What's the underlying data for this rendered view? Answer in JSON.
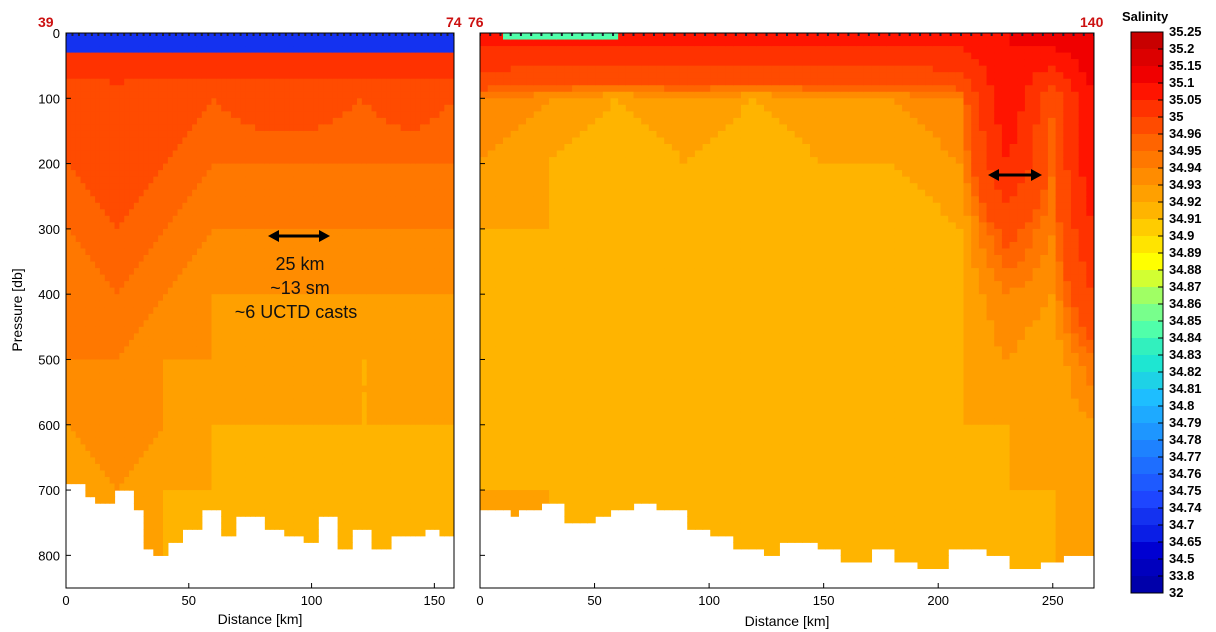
{
  "chart_data": [
    {
      "type": "heatmap",
      "title": "",
      "xlabel": "Distance [km]",
      "ylabel": "Pressure [db]",
      "xlim": [
        0,
        158
      ],
      "ylim": [
        850,
        0
      ],
      "x_ticks": [
        "0",
        "50",
        "100",
        "150"
      ],
      "y_ticks": [
        "0",
        "100",
        "200",
        "300",
        "400",
        "500",
        "600",
        "700",
        "800"
      ],
      "station_labels": {
        "left": "39",
        "right": "74"
      },
      "annotation": [
        "25 km",
        "~13 sm",
        "~6 UCTD casts"
      ],
      "arrow_x_km": [
        80,
        105
      ],
      "arrow_pressure_db": 310,
      "surface_layer": {
        "pressure_db": [
          0,
          30
        ],
        "salinity": 34.7
      },
      "bottom_depth_x_km": [
        0,
        8,
        12,
        20,
        28,
        32,
        36,
        42,
        48,
        56,
        63,
        70,
        80,
        88,
        96,
        103,
        110,
        116,
        124,
        132,
        140,
        146,
        152,
        158
      ],
      "bottom_depth_db": [
        690,
        710,
        720,
        700,
        730,
        790,
        800,
        780,
        760,
        730,
        770,
        735,
        755,
        765,
        780,
        735,
        790,
        760,
        790,
        770,
        770,
        755,
        770,
        770
      ],
      "salinity_field": {
        "x_km": [
          0,
          20,
          40,
          60,
          80,
          100,
          120,
          140,
          158
        ],
        "pressure_db": [
          40,
          100,
          200,
          300,
          400,
          500,
          600,
          700,
          800
        ],
        "values": [
          [
            35.03,
            35.03,
            35.03,
            35.03,
            35.03,
            35.03,
            35.03,
            35.03,
            35.03
          ],
          [
            34.97,
            34.98,
            34.97,
            34.96,
            34.97,
            34.97,
            34.96,
            34.97,
            34.96
          ],
          [
            34.96,
            34.97,
            34.96,
            34.95,
            34.95,
            34.95,
            34.95,
            34.95,
            34.95
          ],
          [
            34.95,
            34.96,
            34.95,
            34.94,
            34.94,
            34.94,
            34.94,
            34.94,
            34.94
          ],
          [
            34.94,
            34.95,
            34.94,
            34.93,
            34.93,
            34.93,
            34.93,
            34.93,
            34.93
          ],
          [
            34.94,
            34.94,
            34.93,
            34.93,
            34.92,
            34.93,
            34.92,
            34.92,
            34.93
          ],
          [
            34.93,
            34.94,
            34.93,
            34.92,
            34.92,
            34.92,
            34.92,
            34.92,
            34.92
          ],
          [
            34.92,
            34.93,
            34.92,
            34.92,
            34.91,
            34.92,
            34.91,
            34.91,
            34.92
          ],
          [
            34.92,
            34.92,
            34.92,
            34.91,
            34.91,
            34.91,
            34.91,
            34.91,
            34.91
          ]
        ]
      }
    },
    {
      "type": "heatmap",
      "title": "",
      "xlabel": "Distance [km]",
      "ylabel": "",
      "xlim": [
        0,
        268
      ],
      "ylim": [
        850,
        0
      ],
      "x_ticks": [
        "0",
        "50",
        "100",
        "150",
        "200",
        "250"
      ],
      "y_ticks": [],
      "station_labels": {
        "left": "76",
        "right": "140"
      },
      "arrow_x_km": [
        222,
        246
      ],
      "arrow_pressure_db": 215,
      "surface_layer": {
        "x_km": [
          10,
          60
        ],
        "pressure_db": [
          0,
          12
        ],
        "salinity": 34.84
      },
      "bottom_depth_x_km": [
        0,
        12,
        18,
        26,
        38,
        50,
        56,
        66,
        76,
        90,
        102,
        112,
        124,
        132,
        146,
        158,
        170,
        182,
        192,
        206,
        220,
        232,
        244,
        256,
        268
      ],
      "bottom_depth_db": [
        730,
        735,
        725,
        715,
        745,
        735,
        730,
        720,
        730,
        760,
        770,
        790,
        795,
        780,
        790,
        810,
        790,
        805,
        820,
        790,
        800,
        815,
        810,
        800,
        815
      ],
      "salinity_field": {
        "x_km": [
          0,
          30,
          60,
          90,
          120,
          150,
          180,
          210,
          230,
          250,
          268
        ],
        "pressure_db": [
          20,
          100,
          200,
          300,
          400,
          500,
          600,
          700,
          800
        ],
        "values": [
          [
            35.05,
            35.05,
            35.05,
            35.05,
            35.05,
            35.05,
            35.05,
            35.05,
            35.1,
            35.1,
            35.15
          ],
          [
            34.94,
            34.93,
            34.92,
            34.93,
            34.92,
            34.93,
            34.93,
            34.94,
            35.1,
            34.96,
            35.1
          ],
          [
            34.93,
            34.92,
            34.91,
            34.92,
            34.91,
            34.92,
            34.92,
            34.93,
            35.05,
            34.95,
            35.1
          ],
          [
            34.92,
            34.92,
            34.91,
            34.91,
            34.91,
            34.91,
            34.91,
            34.92,
            34.97,
            34.94,
            35.05
          ],
          [
            34.92,
            34.91,
            34.91,
            34.91,
            34.91,
            34.91,
            34.91,
            34.92,
            34.94,
            34.93,
            35.0
          ],
          [
            34.92,
            34.91,
            34.91,
            34.91,
            34.91,
            34.91,
            34.91,
            34.92,
            34.93,
            34.92,
            34.95
          ],
          [
            34.92,
            34.91,
            34.91,
            34.91,
            34.91,
            34.91,
            34.91,
            34.92,
            34.92,
            34.92,
            34.93
          ],
          [
            34.92,
            34.92,
            34.91,
            34.91,
            34.91,
            34.91,
            34.91,
            34.91,
            34.92,
            34.92,
            34.92
          ],
          [
            34.92,
            34.92,
            34.91,
            34.91,
            34.91,
            34.91,
            34.91,
            34.91,
            34.91,
            34.92,
            34.92
          ]
        ]
      }
    }
  ],
  "colorbar": {
    "title": "Salinity",
    "levels": [
      "35.25",
      "35.2",
      "35.15",
      "35.1",
      "35.05",
      "35",
      "34.96",
      "34.95",
      "34.94",
      "34.93",
      "34.92",
      "34.91",
      "34.9",
      "34.89",
      "34.88",
      "34.87",
      "34.86",
      "34.85",
      "34.84",
      "34.83",
      "34.82",
      "34.81",
      "34.8",
      "34.79",
      "34.78",
      "34.77",
      "34.76",
      "34.75",
      "34.74",
      "34.7",
      "34.65",
      "34.5",
      "33.8",
      "32"
    ],
    "colors": [
      "#c80000",
      "#dc0000",
      "#f00000",
      "#ff1400",
      "#ff3200",
      "#ff4b00",
      "#ff6400",
      "#ff7800",
      "#ff8c00",
      "#ffa000",
      "#ffb400",
      "#ffcc00",
      "#ffe400",
      "#ffff00",
      "#d2ff32",
      "#a0ff64",
      "#78ff8c",
      "#50ffaa",
      "#32f0be",
      "#1ee6d2",
      "#1ed2e6",
      "#1ebeff",
      "#1eaaff",
      "#1e96ff",
      "#1e82ff",
      "#1e6eff",
      "#1e5aff",
      "#1e46ff",
      "#1432f0",
      "#0a1ee6",
      "#0000d2",
      "#0000be",
      "#0000aa"
    ]
  }
}
